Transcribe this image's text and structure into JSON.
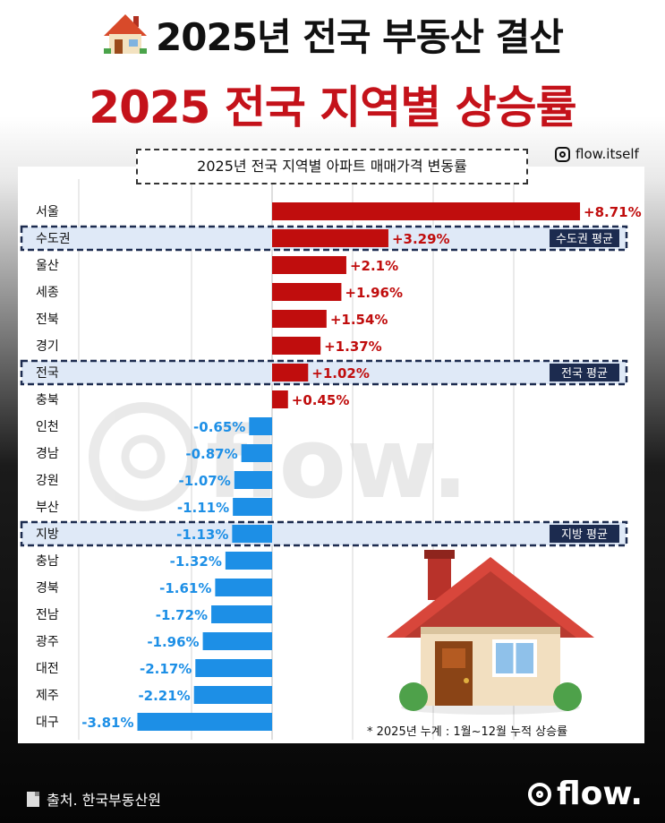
{
  "header": {
    "title": "2025년 전국 부동산 결산",
    "subtitle": "2025 전국 지역별 상승률"
  },
  "instagram_handle": "flow.itself",
  "note": "* 2025년 누계 :  1월~12월 누적 상승률",
  "source": "출처. 한국부동산원",
  "logo": "flow.",
  "watermark": "flow.",
  "colors": {
    "positive": "#c00d0d",
    "negative": "#1d8fe6",
    "highlight_bg": "#dfe9f7",
    "highlight_border": "#1c2b4f",
    "title_red": "#c4121a"
  },
  "chart_data": {
    "type": "bar",
    "orientation": "horizontal",
    "title": "2025년 전국 지역별 아파트 매매가격 변동률",
    "unit": "%",
    "xlim": [
      -4,
      9.5
    ],
    "categories": [
      "서울",
      "수도권",
      "울산",
      "세종",
      "전북",
      "경기",
      "전국",
      "충북",
      "인천",
      "경남",
      "강원",
      "부산",
      "지방",
      "충남",
      "경북",
      "전남",
      "광주",
      "대전",
      "제주",
      "대구"
    ],
    "values": [
      8.71,
      3.29,
      2.1,
      1.96,
      1.54,
      1.37,
      1.02,
      0.45,
      -0.65,
      -0.87,
      -1.07,
      -1.11,
      -1.13,
      -1.32,
      -1.61,
      -1.72,
      -1.96,
      -2.17,
      -2.21,
      -3.81
    ],
    "labels": [
      "+8.71%",
      "+3.29%",
      "+2.1%",
      "+1.96%",
      "+1.54%",
      "+1.37%",
      "+1.02%",
      "+0.45%",
      "-0.65%",
      "-0.87%",
      "-1.07%",
      "-1.11%",
      "-1.13%",
      "-1.32%",
      "-1.61%",
      "-1.72%",
      "-1.96%",
      "-2.17%",
      "-2.21%",
      "-3.81%"
    ],
    "highlights": [
      {
        "category": "수도권",
        "tag": "수도권 평균"
      },
      {
        "category": "전국",
        "tag": "전국 평균"
      },
      {
        "category": "지방",
        "tag": "지방 평균"
      }
    ]
  }
}
